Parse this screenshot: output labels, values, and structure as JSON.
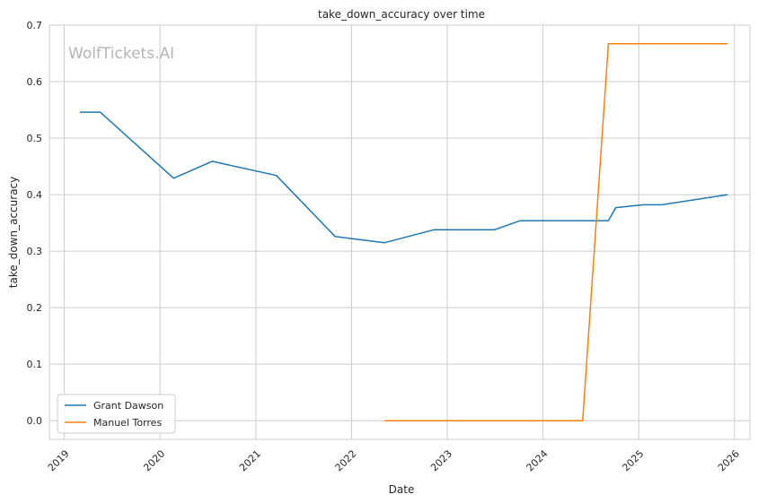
{
  "watermark": "WolfTickets.AI",
  "chart_data": {
    "type": "line",
    "title": "take_down_accuracy over time",
    "xlabel": "Date",
    "ylabel": "take_down_accuracy",
    "x_ticks": [
      "2019",
      "2020",
      "2021",
      "2022",
      "2023",
      "2024",
      "2025",
      "2026"
    ],
    "y_ticks": [
      "0.0",
      "0.1",
      "0.2",
      "0.3",
      "0.4",
      "0.5",
      "0.6",
      "0.7"
    ],
    "ylim": [
      -0.033,
      0.7
    ],
    "xlim": [
      "2018-11-05",
      "2026-03-01"
    ],
    "grid": true,
    "legend_position": "lower-left",
    "colors": {
      "Grant Dawson": "#1f77b4",
      "Manuel Torres": "#ff7f0e"
    },
    "series": [
      {
        "name": "Grant Dawson",
        "points": [
          [
            "2019-03-02",
            0.546
          ],
          [
            "2019-05-18",
            0.546
          ],
          [
            "2020-02-22",
            0.429
          ],
          [
            "2020-07-18",
            0.459
          ],
          [
            "2021-03-20",
            0.434
          ],
          [
            "2021-10-30",
            0.326
          ],
          [
            "2022-05-07",
            0.315
          ],
          [
            "2022-11-12",
            0.338
          ],
          [
            "2023-07-01",
            0.338
          ],
          [
            "2023-10-07",
            0.354
          ],
          [
            "2024-09-07",
            0.354
          ],
          [
            "2024-10-05",
            0.377
          ],
          [
            "2025-01-18",
            0.382
          ],
          [
            "2025-03-29",
            0.382
          ],
          [
            "2025-12-06",
            0.4
          ]
        ]
      },
      {
        "name": "Manuel Torres",
        "points": [
          [
            "2022-05-07",
            0.0
          ],
          [
            "2024-06-01",
            0.0
          ],
          [
            "2024-09-07",
            0.667
          ],
          [
            "2025-12-06",
            0.667
          ]
        ]
      }
    ]
  }
}
